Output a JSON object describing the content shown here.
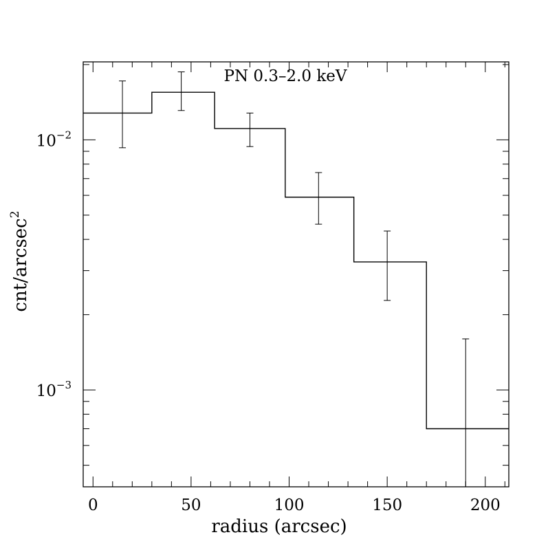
{
  "chart_data": {
    "type": "line",
    "style": "step histogram with error bars",
    "title": "PN 0.3–2.0 keV",
    "xlabel": "radius (arcsec)",
    "ylabel": "cnt/arcsec",
    "ylabel_superscript": "2",
    "xlim": [
      -5,
      212
    ],
    "ylim": [
      0.00041,
      0.0205
    ],
    "yscale": "log",
    "x_ticks": [
      0,
      50,
      100,
      150,
      200
    ],
    "x_tick_labels": [
      "0",
      "50",
      "100",
      "150",
      "200"
    ],
    "y_major_ticks": [
      0.001,
      0.01
    ],
    "y_tick_labels": [
      {
        "base": "10",
        "exponent": "−3",
        "value": 0.001
      },
      {
        "base": "10",
        "exponent": "−2",
        "value": 0.01
      }
    ],
    "bins": [
      {
        "x_lo": -5,
        "x_hi": 30,
        "x": 15,
        "y": 0.0128,
        "err_lo": 0.0093,
        "err_hi": 0.0172
      },
      {
        "x_lo": 30,
        "x_hi": 62,
        "x": 45,
        "y": 0.0155,
        "err_lo": 0.0131,
        "err_hi": 0.0187
      },
      {
        "x_lo": 62,
        "x_hi": 98,
        "x": 80,
        "y": 0.0111,
        "err_lo": 0.0094,
        "err_hi": 0.0128
      },
      {
        "x_lo": 98,
        "x_hi": 133,
        "x": 115,
        "y": 0.0059,
        "err_lo": 0.0046,
        "err_hi": 0.0074
      },
      {
        "x_lo": 133,
        "x_hi": 170,
        "x": 150,
        "y": 0.00325,
        "err_lo": 0.00228,
        "err_hi": 0.00432
      },
      {
        "x_lo": 170,
        "x_hi": 212,
        "x": 190,
        "y": 0.0007,
        "err_lo": 0.00041,
        "err_hi": 0.0016
      }
    ]
  }
}
